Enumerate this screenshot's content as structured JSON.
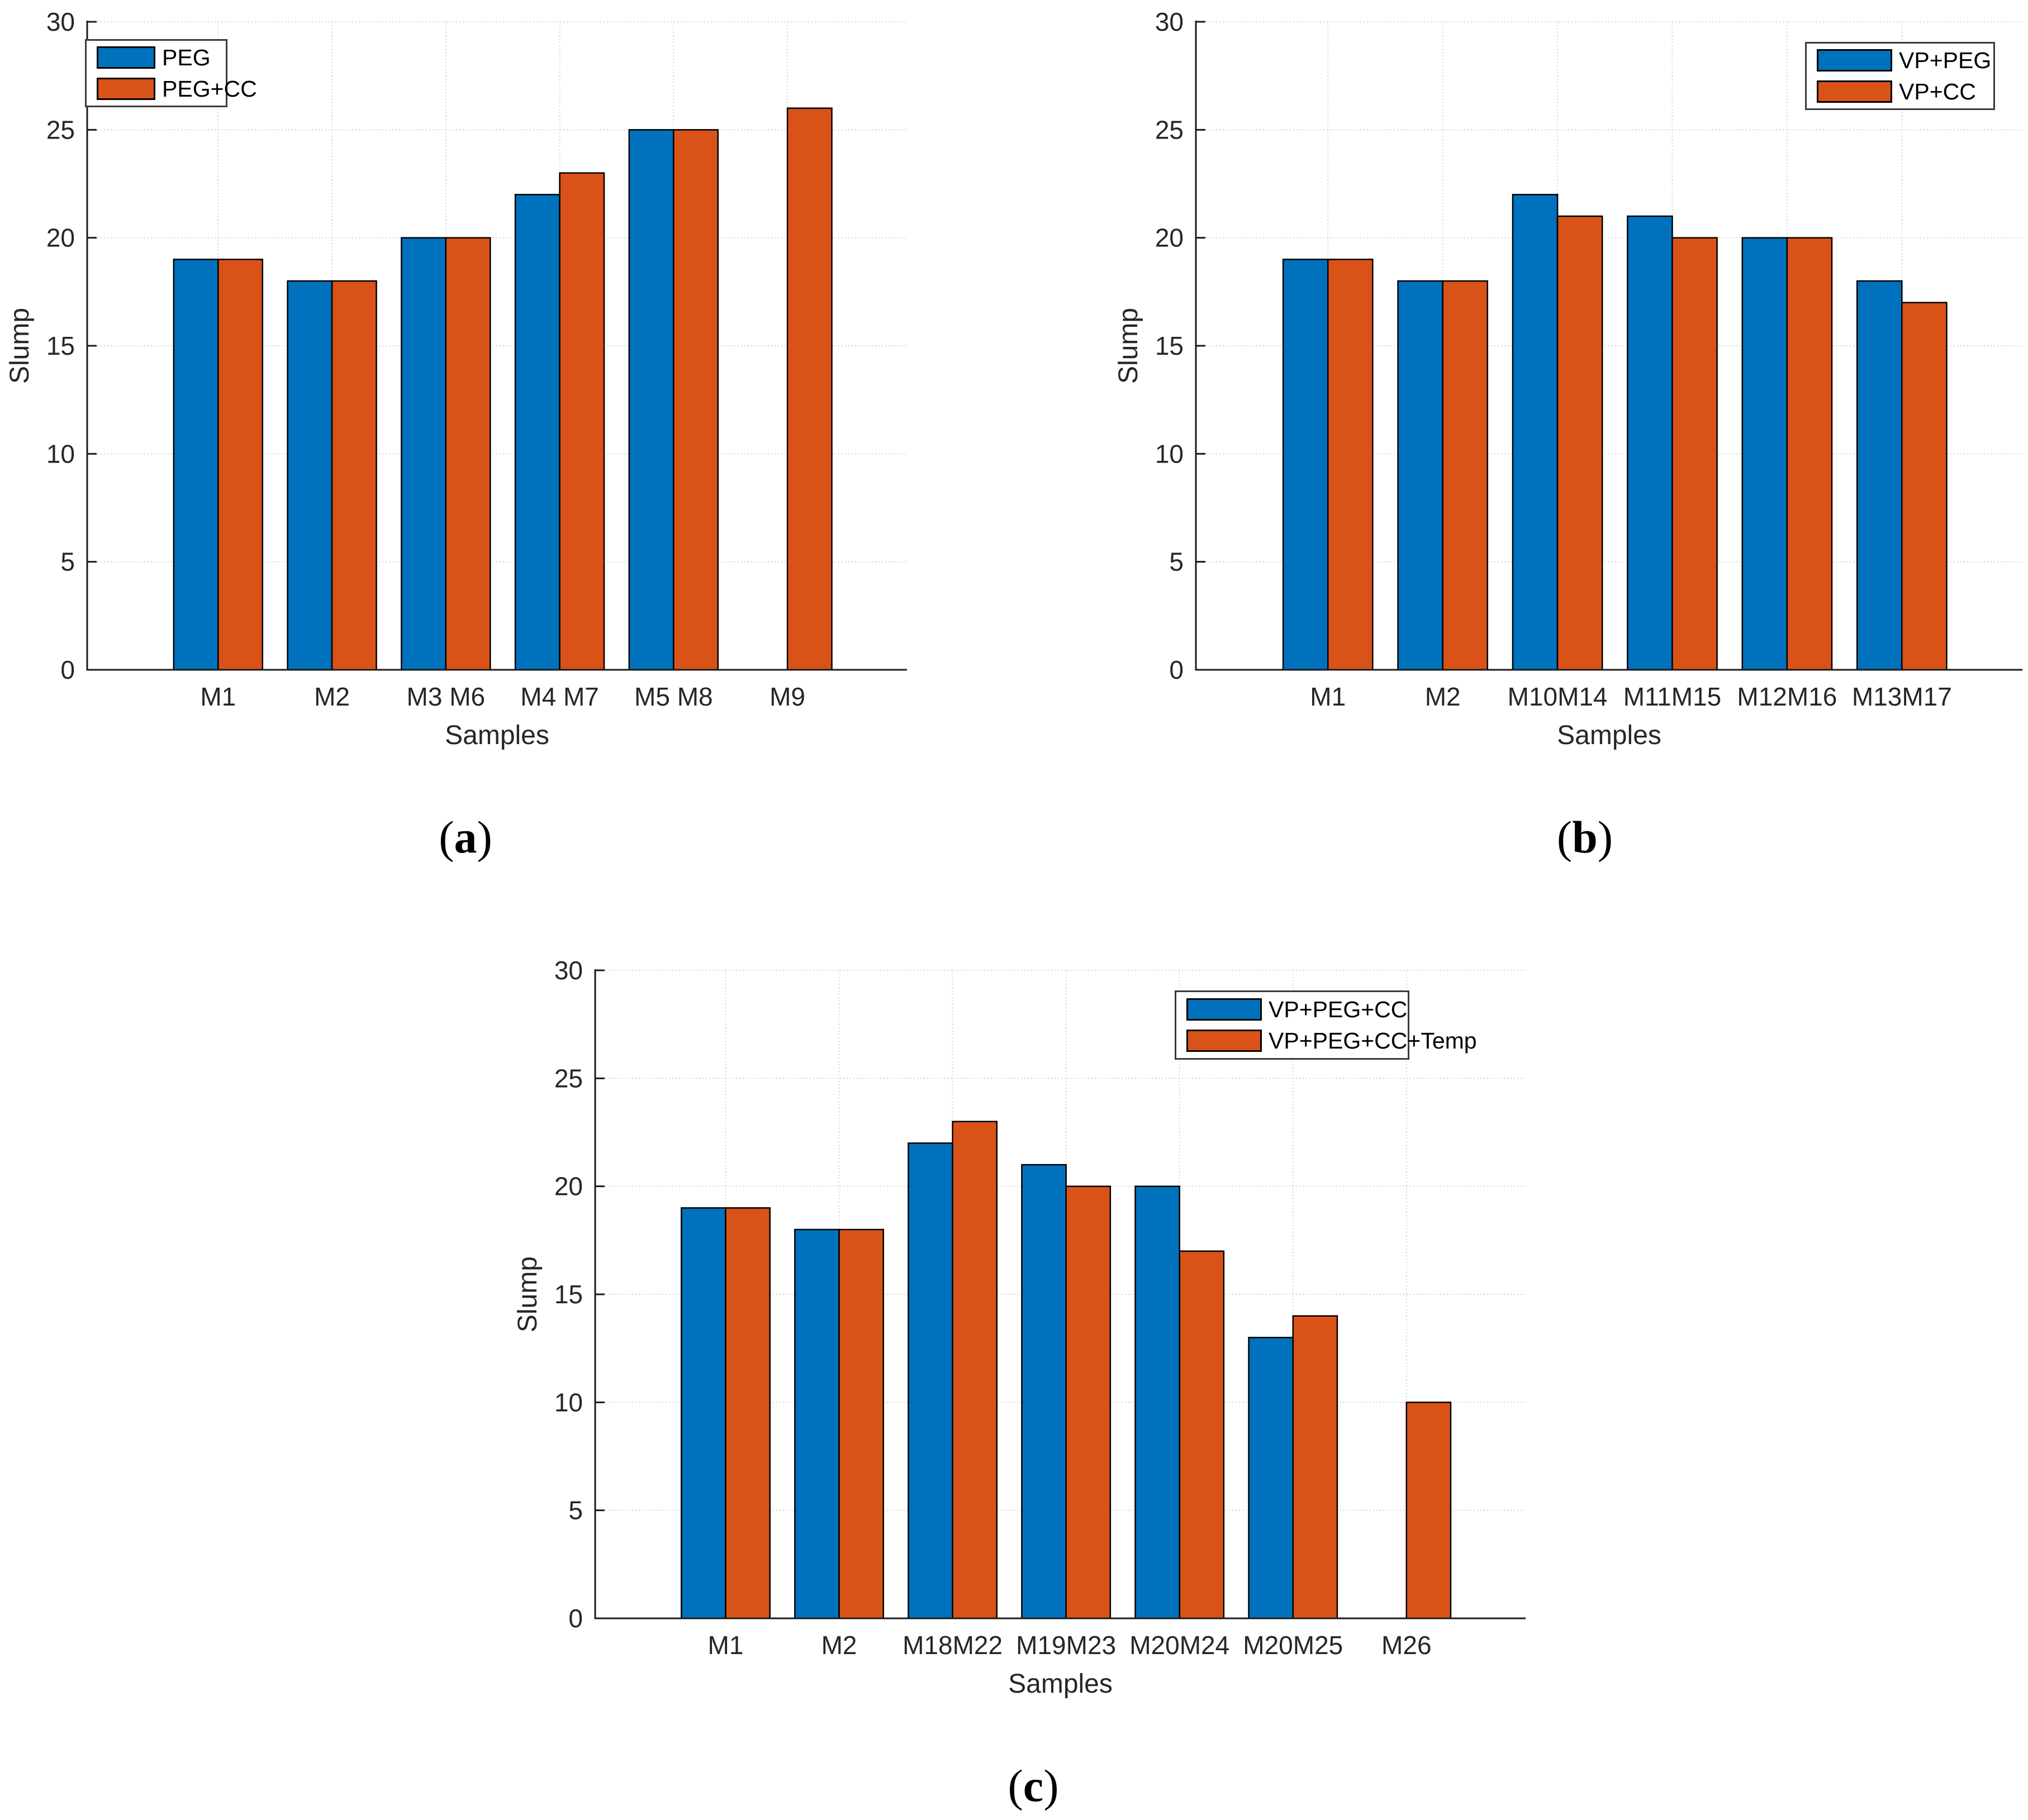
{
  "figure": {
    "background": "#ffffff",
    "ylabel": "Slump",
    "xlabel": "Samples"
  },
  "colors": {
    "series_blue": "#0072BD",
    "series_orange": "#D95319",
    "axis": "#1c1c1c",
    "tick_label": "#262626",
    "grid": "#d4d4d4",
    "bar_edge": "#000000",
    "legend_border": "#3b3b3b"
  },
  "chart_data": [
    {
      "type": "bar",
      "panel_label": "(a)",
      "xlabel": "Samples",
      "ylabel": "Slump",
      "ylim": [
        0,
        30
      ],
      "yticks": [
        0,
        5,
        10,
        15,
        20,
        25,
        30
      ],
      "grid": true,
      "legend_position": "top-left",
      "categories": [
        "M1",
        "M2",
        "M3 M6",
        "M4 M7",
        "M5 M8",
        "M9"
      ],
      "series": [
        {
          "name": "PEG",
          "color": "#0072BD",
          "values": [
            19,
            18,
            20,
            22,
            25,
            null
          ]
        },
        {
          "name": "PEG+CC",
          "color": "#D95319",
          "values": [
            19,
            18,
            20,
            23,
            25,
            26
          ]
        }
      ]
    },
    {
      "type": "bar",
      "panel_label": "(b)",
      "xlabel": "Samples",
      "ylabel": "Slump",
      "ylim": [
        0,
        30
      ],
      "yticks": [
        0,
        5,
        10,
        15,
        20,
        25,
        30
      ],
      "grid": true,
      "legend_position": "top-right",
      "categories": [
        "M1",
        "M2",
        "M10M14",
        "M11M15",
        "M12M16",
        "M13M17"
      ],
      "series": [
        {
          "name": "VP+PEG",
          "color": "#0072BD",
          "values": [
            19,
            18,
            22,
            21,
            20,
            18
          ]
        },
        {
          "name": "VP+CC",
          "color": "#D95319",
          "values": [
            19,
            18,
            21,
            20,
            20,
            17
          ]
        }
      ]
    },
    {
      "type": "bar",
      "panel_label": "(c)",
      "xlabel": "Samples",
      "ylabel": "Slump",
      "ylim": [
        0,
        30
      ],
      "yticks": [
        0,
        5,
        10,
        15,
        20,
        25,
        30
      ],
      "grid": true,
      "legend_position": "top-right",
      "categories": [
        "M1",
        "M2",
        "M18M22",
        "M19M23",
        "M20M24",
        "M20M25",
        "M26"
      ],
      "series": [
        {
          "name": "VP+PEG+CC",
          "color": "#0072BD",
          "values": [
            19,
            18,
            22,
            21,
            20,
            13,
            null
          ]
        },
        {
          "name": "VP+PEG+CC+Temp",
          "color": "#D95319",
          "values": [
            19,
            18,
            23,
            20,
            17,
            14,
            10
          ]
        }
      ]
    }
  ]
}
